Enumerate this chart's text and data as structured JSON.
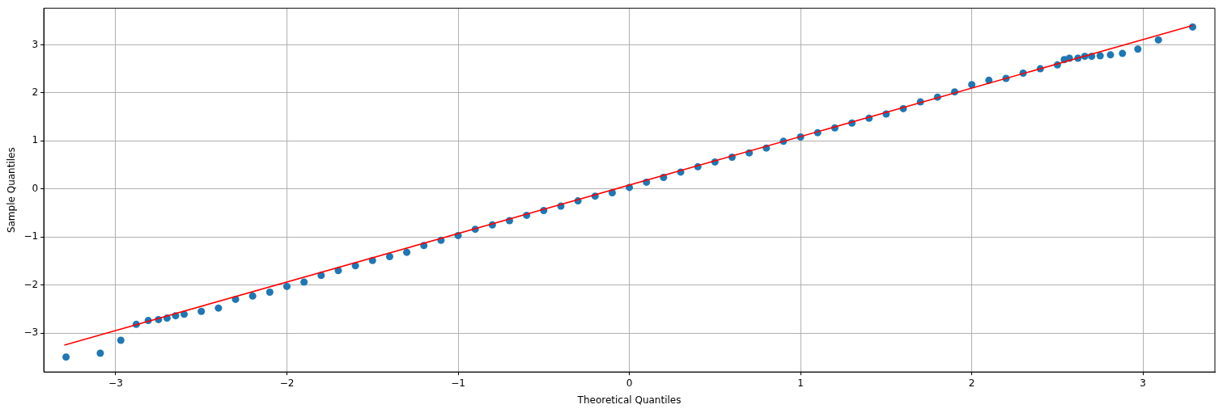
{
  "chart_data": {
    "type": "scatter",
    "xlabel": "Theoretical Quantiles",
    "ylabel": "Sample Quantiles",
    "xlim": [
      -3.42,
      3.42
    ],
    "ylim": [
      -3.81,
      3.76
    ],
    "xticks": [
      {
        "value": -3,
        "label": "−3"
      },
      {
        "value": -2,
        "label": "−2"
      },
      {
        "value": -1,
        "label": "−1"
      },
      0,
      1,
      2,
      3
    ],
    "yticks": [
      {
        "value": -3,
        "label": "−3"
      },
      {
        "value": -2,
        "label": "−2"
      },
      {
        "value": -1,
        "label": "−1"
      },
      0,
      1,
      2,
      3
    ],
    "grid": true,
    "legend": false,
    "series": [
      {
        "marker": "circle",
        "color": "#1f77b4",
        "x": [
          -3.29,
          -3.09,
          -2.97,
          -2.88,
          -2.81,
          -2.75,
          -2.7,
          -2.65,
          -2.6,
          -2.5,
          -2.4,
          -2.3,
          -2.2,
          -2.1,
          -2.0,
          -1.9,
          -1.8,
          -1.7,
          -1.6,
          -1.5,
          -1.4,
          -1.3,
          -1.2,
          -1.1,
          -1.0,
          -0.9,
          -0.8,
          -0.7,
          -0.6,
          -0.5,
          -0.4,
          -0.3,
          -0.2,
          -0.1,
          0.0,
          0.1,
          0.2,
          0.3,
          0.4,
          0.5,
          0.6,
          0.7,
          0.8,
          0.9,
          1.0,
          1.1,
          1.2,
          1.3,
          1.4,
          1.5,
          1.6,
          1.7,
          1.8,
          1.9,
          2.0,
          2.1,
          2.2,
          2.3,
          2.4,
          2.5,
          2.54,
          2.57,
          2.62,
          2.66,
          2.7,
          2.75,
          2.81,
          2.88,
          2.97,
          3.09,
          3.29
        ],
        "values": [
          -3.5,
          -3.42,
          -3.15,
          -2.82,
          -2.74,
          -2.72,
          -2.69,
          -2.64,
          -2.61,
          -2.55,
          -2.48,
          -2.3,
          -2.23,
          -2.15,
          -2.03,
          -1.94,
          -1.8,
          -1.7,
          -1.6,
          -1.49,
          -1.41,
          -1.32,
          -1.18,
          -1.07,
          -0.97,
          -0.84,
          -0.75,
          -0.66,
          -0.55,
          -0.45,
          -0.36,
          -0.25,
          -0.15,
          -0.08,
          0.03,
          0.14,
          0.24,
          0.35,
          0.46,
          0.56,
          0.66,
          0.75,
          0.85,
          0.99,
          1.08,
          1.17,
          1.27,
          1.37,
          1.47,
          1.56,
          1.67,
          1.81,
          1.91,
          2.02,
          2.17,
          2.26,
          2.3,
          2.41,
          2.5,
          2.58,
          2.69,
          2.72,
          2.72,
          2.76,
          2.76,
          2.77,
          2.79,
          2.82,
          2.91,
          3.1,
          3.37
        ]
      },
      {
        "type": "line",
        "marker": "none",
        "color": "#ff0000",
        "x": [
          -3.3,
          3.29
        ],
        "values": [
          -3.25,
          3.4
        ]
      }
    ]
  }
}
